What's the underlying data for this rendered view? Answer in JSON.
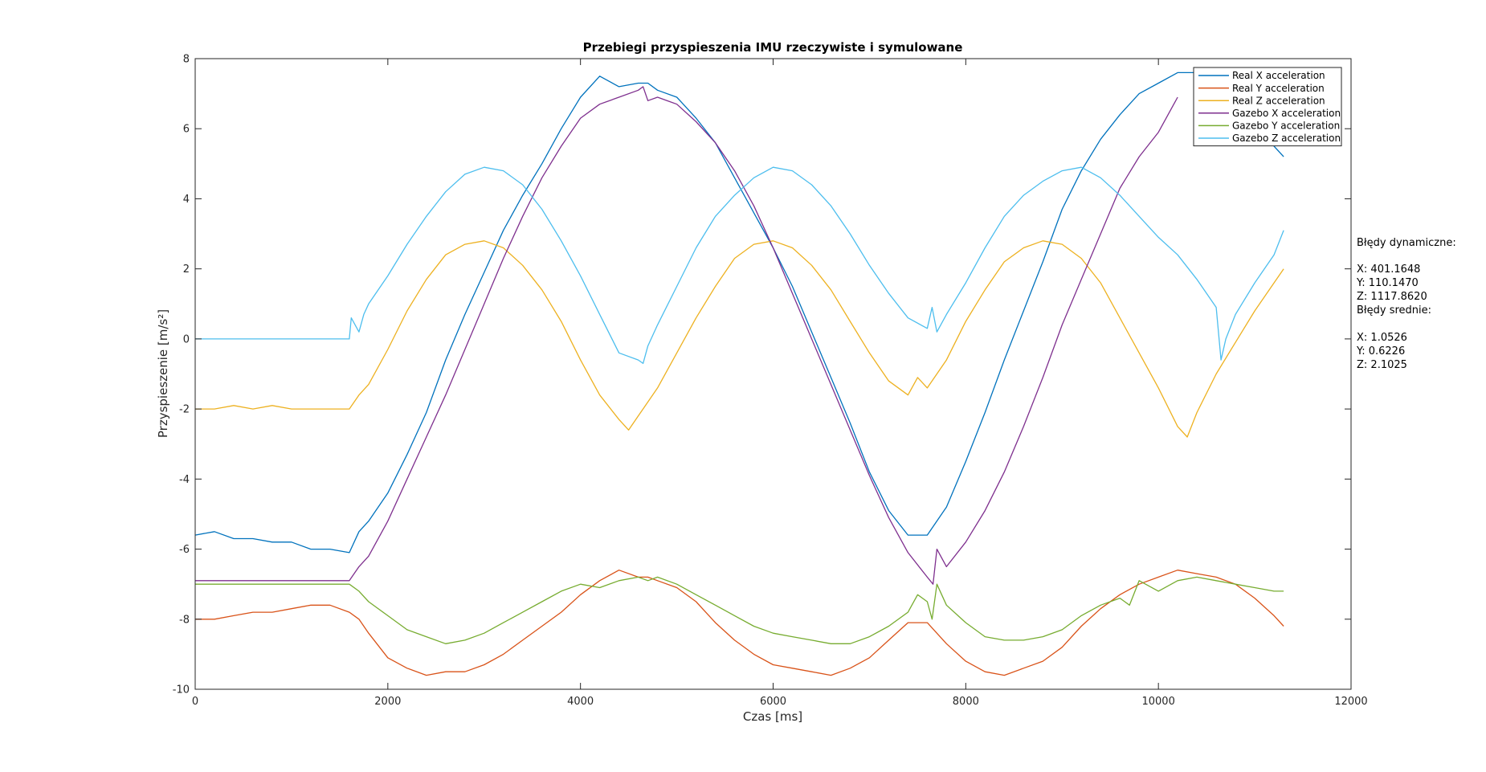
{
  "chart_data": {
    "type": "line",
    "title": "Przebiegi przyspieszenia IMU rzeczywiste i symulowane",
    "xlabel": "Czas [ms]",
    "ylabel": "Przyspieszenie [m/s²]",
    "xlim": [
      0,
      12000
    ],
    "ylim": [
      -10,
      8
    ],
    "xticks": [
      0,
      2000,
      4000,
      6000,
      8000,
      10000,
      12000
    ],
    "yticks": [
      -10,
      -8,
      -6,
      -4,
      -2,
      0,
      2,
      4,
      6,
      8
    ],
    "grid": false,
    "legend_position": "top-right",
    "series": [
      {
        "name": "Real X acceleration",
        "color": "#0072BD",
        "x": [
          0,
          200,
          400,
          600,
          800,
          1000,
          1200,
          1400,
          1600,
          1700,
          1800,
          2000,
          2200,
          2400,
          2600,
          2800,
          3000,
          3200,
          3400,
          3600,
          3800,
          4000,
          4200,
          4400,
          4600,
          4700,
          4800,
          5000,
          5200,
          5400,
          5600,
          5800,
          6000,
          6200,
          6400,
          6600,
          6800,
          7000,
          7200,
          7400,
          7600,
          7800,
          8000,
          8200,
          8400,
          8600,
          8800,
          9000,
          9200,
          9400,
          9600,
          9800,
          10000,
          10200,
          10400,
          10600,
          10800,
          11000,
          11200,
          11300
        ],
        "y": [
          -5.6,
          -5.5,
          -5.7,
          -5.7,
          -5.8,
          -5.8,
          -6.0,
          -6.0,
          -6.1,
          -5.5,
          -5.2,
          -4.4,
          -3.3,
          -2.1,
          -0.6,
          0.7,
          1.9,
          3.1,
          4.1,
          5.0,
          6.0,
          6.9,
          7.5,
          7.2,
          7.3,
          7.3,
          7.1,
          6.9,
          6.3,
          5.6,
          4.6,
          3.6,
          2.6,
          1.5,
          0.2,
          -1.1,
          -2.4,
          -3.8,
          -4.9,
          -5.6,
          -5.6,
          -4.8,
          -3.5,
          -2.1,
          -0.6,
          0.8,
          2.2,
          3.7,
          4.8,
          5.7,
          6.4,
          7.0,
          7.3,
          7.6,
          7.6,
          7.4,
          7.0,
          6.2,
          5.5,
          5.2
        ]
      },
      {
        "name": "Real Y acceleration",
        "color": "#D95319",
        "x": [
          0,
          200,
          400,
          600,
          800,
          1000,
          1200,
          1400,
          1600,
          1700,
          1800,
          2000,
          2200,
          2400,
          2600,
          2800,
          3000,
          3200,
          3400,
          3600,
          3800,
          4000,
          4200,
          4400,
          4600,
          4700,
          4800,
          5000,
          5200,
          5400,
          5600,
          5800,
          6000,
          6200,
          6400,
          6600,
          6800,
          7000,
          7200,
          7400,
          7600,
          7800,
          8000,
          8200,
          8400,
          8600,
          8800,
          9000,
          9200,
          9400,
          9600,
          9800,
          10000,
          10200,
          10400,
          10600,
          10800,
          11000,
          11200,
          11300
        ],
        "y": [
          -8.0,
          -8.0,
          -7.9,
          -7.8,
          -7.8,
          -7.7,
          -7.6,
          -7.6,
          -7.8,
          -8.0,
          -8.4,
          -9.1,
          -9.4,
          -9.6,
          -9.5,
          -9.5,
          -9.3,
          -9.0,
          -8.6,
          -8.2,
          -7.8,
          -7.3,
          -6.9,
          -6.6,
          -6.8,
          -6.8,
          -6.9,
          -7.1,
          -7.5,
          -8.1,
          -8.6,
          -9.0,
          -9.3,
          -9.4,
          -9.5,
          -9.6,
          -9.4,
          -9.1,
          -8.6,
          -8.1,
          -8.1,
          -8.7,
          -9.2,
          -9.5,
          -9.6,
          -9.4,
          -9.2,
          -8.8,
          -8.2,
          -7.7,
          -7.3,
          -7.0,
          -6.8,
          -6.6,
          -6.7,
          -6.8,
          -7.0,
          -7.4,
          -7.9,
          -8.2
        ]
      },
      {
        "name": "Real Z acceleration",
        "color": "#EDB120",
        "x": [
          0,
          200,
          400,
          600,
          800,
          1000,
          1200,
          1400,
          1600,
          1700,
          1800,
          2000,
          2200,
          2400,
          2600,
          2800,
          3000,
          3200,
          3400,
          3600,
          3800,
          4000,
          4200,
          4400,
          4500,
          4600,
          4800,
          5000,
          5200,
          5400,
          5600,
          5800,
          6000,
          6200,
          6400,
          6600,
          6800,
          7000,
          7200,
          7400,
          7500,
          7600,
          7800,
          8000,
          8200,
          8400,
          8600,
          8800,
          9000,
          9200,
          9400,
          9600,
          9800,
          10000,
          10200,
          10300,
          10400,
          10600,
          10800,
          11000,
          11200,
          11300
        ],
        "y": [
          -2.0,
          -2.0,
          -1.9,
          -2.0,
          -1.9,
          -2.0,
          -2.0,
          -2.0,
          -2.0,
          -1.6,
          -1.3,
          -0.3,
          0.8,
          1.7,
          2.4,
          2.7,
          2.8,
          2.6,
          2.1,
          1.4,
          0.5,
          -0.6,
          -1.6,
          -2.3,
          -2.6,
          -2.2,
          -1.4,
          -0.4,
          0.6,
          1.5,
          2.3,
          2.7,
          2.8,
          2.6,
          2.1,
          1.4,
          0.5,
          -0.4,
          -1.2,
          -1.6,
          -1.1,
          -1.4,
          -0.6,
          0.5,
          1.4,
          2.2,
          2.6,
          2.8,
          2.7,
          2.3,
          1.6,
          0.6,
          -0.4,
          -1.4,
          -2.5,
          -2.8,
          -2.1,
          -1.0,
          -0.1,
          0.8,
          1.6,
          2.0
        ]
      },
      {
        "name": "Gazebo X acceleration",
        "color": "#7E2F8E",
        "x": [
          0,
          400,
          800,
          1200,
          1600,
          1700,
          1800,
          2000,
          2200,
          2400,
          2600,
          2800,
          3000,
          3200,
          3400,
          3600,
          3800,
          4000,
          4200,
          4400,
          4600,
          4650,
          4700,
          4800,
          5000,
          5200,
          5400,
          5600,
          5800,
          6000,
          6200,
          6400,
          6600,
          6800,
          7000,
          7200,
          7400,
          7600,
          7660,
          7700,
          7800,
          8000,
          8200,
          8400,
          8600,
          8800,
          9000,
          9200,
          9400,
          9600,
          9800,
          10000,
          10200
        ],
        "y": [
          -6.9,
          -6.9,
          -6.9,
          -6.9,
          -6.9,
          -6.5,
          -6.2,
          -5.2,
          -4.0,
          -2.8,
          -1.6,
          -0.3,
          1.0,
          2.3,
          3.5,
          4.6,
          5.5,
          6.3,
          6.7,
          6.9,
          7.1,
          7.2,
          6.8,
          6.9,
          6.7,
          6.2,
          5.6,
          4.8,
          3.8,
          2.6,
          1.3,
          0.0,
          -1.3,
          -2.6,
          -3.9,
          -5.1,
          -6.1,
          -6.8,
          -7.0,
          -6.0,
          -6.5,
          -5.8,
          -4.9,
          -3.8,
          -2.5,
          -1.1,
          0.4,
          1.7,
          3.0,
          4.3,
          5.2,
          5.9,
          6.9
        ]
      },
      {
        "name": "Gazebo Y acceleration",
        "color": "#77AC30",
        "x": [
          0,
          400,
          800,
          1200,
          1600,
          1700,
          1800,
          2000,
          2200,
          2400,
          2600,
          2800,
          3000,
          3200,
          3400,
          3600,
          3800,
          4000,
          4200,
          4400,
          4600,
          4700,
          4800,
          5000,
          5200,
          5400,
          5600,
          5800,
          6000,
          6200,
          6400,
          6600,
          6800,
          7000,
          7200,
          7400,
          7500,
          7600,
          7650,
          7700,
          7800,
          8000,
          8200,
          8400,
          8600,
          8800,
          9000,
          9200,
          9400,
          9600,
          9700,
          9800,
          10000,
          10200,
          10400,
          10600,
          10800,
          11000,
          11200,
          11300
        ],
        "y": [
          -7.0,
          -7.0,
          -7.0,
          -7.0,
          -7.0,
          -7.2,
          -7.5,
          -7.9,
          -8.3,
          -8.5,
          -8.7,
          -8.6,
          -8.4,
          -8.1,
          -7.8,
          -7.5,
          -7.2,
          -7.0,
          -7.1,
          -6.9,
          -6.8,
          -6.9,
          -6.8,
          -7.0,
          -7.3,
          -7.6,
          -7.9,
          -8.2,
          -8.4,
          -8.5,
          -8.6,
          -8.7,
          -8.7,
          -8.5,
          -8.2,
          -7.8,
          -7.3,
          -7.5,
          -8.0,
          -7.0,
          -7.6,
          -8.1,
          -8.5,
          -8.6,
          -8.6,
          -8.5,
          -8.3,
          -7.9,
          -7.6,
          -7.4,
          -7.6,
          -6.9,
          -7.2,
          -6.9,
          -6.8,
          -6.9,
          -7.0,
          -7.1,
          -7.2,
          -7.2
        ]
      },
      {
        "name": "Gazebo Z acceleration",
        "color": "#4DBEEE",
        "x": [
          0,
          400,
          800,
          1200,
          1600,
          1620,
          1700,
          1750,
          1800,
          2000,
          2200,
          2400,
          2600,
          2800,
          3000,
          3200,
          3400,
          3600,
          3800,
          4000,
          4200,
          4400,
          4600,
          4650,
          4700,
          4800,
          5000,
          5200,
          5400,
          5600,
          5800,
          6000,
          6200,
          6400,
          6600,
          6800,
          7000,
          7200,
          7400,
          7600,
          7650,
          7700,
          7800,
          8000,
          8200,
          8400,
          8600,
          8800,
          9000,
          9200,
          9400,
          9600,
          9800,
          10000,
          10200,
          10400,
          10600,
          10650,
          10700,
          10800,
          11000,
          11200,
          11300
        ],
        "y": [
          0.0,
          0.0,
          0.0,
          0.0,
          0.0,
          0.6,
          0.2,
          0.7,
          1.0,
          1.8,
          2.7,
          3.5,
          4.2,
          4.7,
          4.9,
          4.8,
          4.4,
          3.7,
          2.8,
          1.8,
          0.7,
          -0.4,
          -0.6,
          -0.7,
          -0.2,
          0.4,
          1.5,
          2.6,
          3.5,
          4.1,
          4.6,
          4.9,
          4.8,
          4.4,
          3.8,
          3.0,
          2.1,
          1.3,
          0.6,
          0.3,
          0.9,
          0.2,
          0.7,
          1.6,
          2.6,
          3.5,
          4.1,
          4.5,
          4.8,
          4.9,
          4.6,
          4.1,
          3.5,
          2.9,
          2.4,
          1.7,
          0.9,
          -0.6,
          0.0,
          0.7,
          1.6,
          2.4,
          3.1
        ]
      }
    ]
  },
  "annotation": {
    "dyn_title": "Błędy dynamiczne:",
    "dyn_x": "X: 401.1648",
    "dyn_y": "Y: 110.1470",
    "dyn_z": "Z: 1117.8620",
    "avg_title": "Błędy srednie:",
    "avg_x": "X: 1.0526",
    "avg_y": "Y: 0.6226",
    "avg_z": "Z: 2.1025"
  }
}
